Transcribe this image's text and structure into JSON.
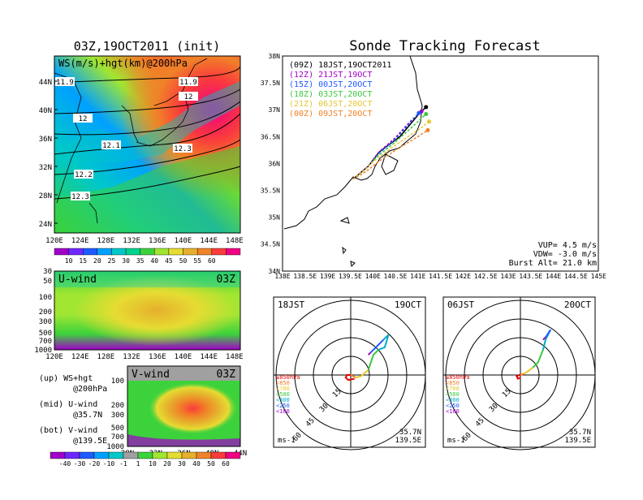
{
  "left_title": "03Z,19OCT2011 (init)",
  "right_title": "Sonde Tracking Forecast",
  "upper_map": {
    "label": "WS(m/s)+hgt(km)@200hPa",
    "lat_ticks": [
      "44N",
      "40N",
      "36N",
      "32N",
      "28N",
      "24N"
    ],
    "lon_ticks": [
      "120E",
      "124E",
      "128E",
      "132E",
      "136E",
      "140E",
      "144E",
      "148E"
    ],
    "contour_labels": [
      "11.9",
      "11.9",
      "12",
      "12",
      "12.1",
      "12.3",
      "12.2",
      "12.3"
    ]
  },
  "speed_colorbar": {
    "ticks": [
      "10",
      "15",
      "20",
      "25",
      "30",
      "35",
      "40",
      "45",
      "50",
      "55",
      "60"
    ],
    "colors": [
      "#a000c8",
      "#6e28ff",
      "#1e5aff",
      "#00a0ff",
      "#00c8c8",
      "#00d28c",
      "#3cd23c",
      "#a0e632",
      "#e6dc32",
      "#e6af2d",
      "#f08228",
      "#fa3c3c",
      "#f00082"
    ]
  },
  "u_panel": {
    "label": "U-wind",
    "time": "03Z",
    "levels": [
      "30",
      "50",
      "100",
      "200",
      "300",
      "500",
      "700",
      "1000"
    ],
    "lon_ticks": [
      "120E",
      "124E",
      "128E",
      "132E",
      "136E",
      "140E",
      "144E",
      "148E"
    ]
  },
  "v_panel": {
    "label": "V-wind",
    "time": "03Z",
    "levels": [
      "100",
      "200",
      "300",
      "500",
      "700",
      "1000"
    ],
    "lat_ticks": [
      "28N",
      "32N",
      "36N",
      "40N",
      "44N"
    ]
  },
  "side_notes": [
    {
      "line1": "(up) WS+hgt",
      "line2": "@200hPa"
    },
    {
      "line1": "(mid) U-wind",
      "line2": "@35.7N"
    },
    {
      "line1": "(bot) V-wind",
      "line2": "@139.5E"
    }
  ],
  "wind_colorbar": {
    "ticks": [
      "-40",
      "-30",
      "-20",
      "-10",
      "-1",
      "1",
      "10",
      "20",
      "30",
      "40",
      "50",
      "60"
    ],
    "colors": [
      "#a000c8",
      "#6e28ff",
      "#1e5aff",
      "#00a0ff",
      "#00c8c8",
      "#a0a0a0",
      "#3cd23c",
      "#a0e632",
      "#e6dc32",
      "#e6af2d",
      "#f08228",
      "#fa3c3c",
      "#f00082"
    ]
  },
  "track_map": {
    "lat_ticks": [
      "38N",
      "37.5N",
      "37N",
      "36.5N",
      "36N",
      "35.5N",
      "35N",
      "34.5N",
      "34N"
    ],
    "lon_ticks": [
      "138E",
      "138.5E",
      "139E",
      "139.5E",
      "140E",
      "140.5E",
      "141E",
      "141.5E",
      "142E",
      "142.5E",
      "143E",
      "143.5E",
      "144E",
      "144.5E",
      "145E"
    ],
    "launch_times": [
      {
        "text": "(09Z)  18JST,19OCT2011",
        "color": "#000000"
      },
      {
        "text": "(12Z)  21JST,19OCT",
        "color": "#a000c8"
      },
      {
        "text": "(15Z)  00JST,20OCT",
        "color": "#1e5aff"
      },
      {
        "text": "(18Z)  03JST,20OCT",
        "color": "#3cc83c"
      },
      {
        "text": "(21Z)  06JST,20OCT",
        "color": "#e6c832"
      },
      {
        "text": "(00Z)  09JST,20OCT",
        "color": "#f08228"
      }
    ],
    "params": [
      "VUP= 4.5 m/s",
      "VDW= -3.0 m/s",
      "Burst Alt= 21.0 km"
    ]
  },
  "chart_data": [
    {
      "type": "line",
      "panel": "trajectory",
      "xlabel": "",
      "ylabel": "",
      "xlim": [
        138,
        145
      ],
      "ylim": [
        34,
        38
      ],
      "series": [
        {
          "name": "(09Z) 18JST,19OCT2011",
          "color": "#000000",
          "x": [
            139.56,
            139.9,
            140.15,
            140.6,
            141.0,
            141.18
          ],
          "y": [
            35.71,
            35.95,
            36.22,
            36.5,
            36.9,
            37.05
          ]
        },
        {
          "name": "(12Z) 21JST,19OCT",
          "color": "#a000c8",
          "x": [
            139.56,
            139.9,
            140.12,
            140.5,
            140.85,
            141.08
          ],
          "y": [
            35.71,
            35.95,
            36.2,
            36.48,
            36.8,
            36.97
          ]
        },
        {
          "name": "(15Z) 00JST,20OCT",
          "color": "#1e5aff",
          "x": [
            139.56,
            139.9,
            140.12,
            140.5,
            140.85,
            141.02
          ],
          "y": [
            35.71,
            35.94,
            36.18,
            36.45,
            36.78,
            36.94
          ]
        },
        {
          "name": "(18Z) 03JST,20OCT",
          "color": "#3cc83c",
          "x": [
            139.56,
            139.85,
            140.08,
            140.5,
            140.9,
            141.18
          ],
          "y": [
            35.71,
            35.9,
            36.12,
            36.4,
            36.7,
            36.92
          ]
        },
        {
          "name": "(21Z) 06JST,20OCT",
          "color": "#e6c832",
          "x": [
            139.56,
            139.82,
            140.1,
            140.6,
            141.0,
            141.25
          ],
          "y": [
            35.71,
            35.88,
            36.1,
            36.4,
            36.62,
            36.78
          ]
        },
        {
          "name": "(00Z) 09JST,20OCT",
          "color": "#f08228",
          "x": [
            139.56,
            139.85,
            140.15,
            140.6,
            141.0,
            141.22
          ],
          "y": [
            35.71,
            35.85,
            36.05,
            36.3,
            36.5,
            36.62
          ]
        }
      ]
    },
    {
      "type": "line",
      "panel": "hodograph",
      "title": "18JST 19OCT",
      "corner_labels": [
        "18JST",
        "19OCT"
      ],
      "rings": [
        "15",
        "30",
        "45",
        "60"
      ],
      "legend": [
        "≥850hPa",
        "<850",
        "<700",
        "<500",
        "<300",
        "<250",
        "<100"
      ],
      "location": [
        "35.7N",
        "139.5E"
      ],
      "units": "ms-1",
      "segments": [
        {
          "level": "≥850hPa",
          "color": "#e60000",
          "u": [
            3,
            -2,
            -4,
            -3,
            0
          ],
          "v": [
            -3,
            -4,
            -2,
            0,
            0
          ]
        },
        {
          "level": "<850",
          "color": "#f08228",
          "u": [
            0,
            2,
            4
          ],
          "v": [
            0,
            -1,
            -2
          ]
        },
        {
          "level": "<700",
          "color": "#e6c832",
          "u": [
            4,
            8,
            14
          ],
          "v": [
            -2,
            -1,
            4
          ]
        },
        {
          "level": "<500",
          "color": "#3cc83c",
          "u": [
            14,
            18,
            22
          ],
          "v": [
            4,
            16,
            20
          ]
        },
        {
          "level": "<300",
          "color": "#00aac8",
          "u": [
            22,
            27,
            30,
            26
          ],
          "v": [
            20,
            22,
            32,
            28
          ]
        },
        {
          "level": "<250",
          "color": "#1e5aff",
          "u": [
            26,
            22,
            16
          ],
          "v": [
            28,
            24,
            18
          ]
        },
        {
          "level": "<100",
          "color": "#a000c8",
          "u": [
            16,
            14
          ],
          "v": [
            18,
            16
          ]
        }
      ]
    },
    {
      "type": "line",
      "panel": "hodograph",
      "title": "06JST 20OCT",
      "corner_labels": [
        "06JST",
        "20OCT"
      ],
      "rings": [
        "15",
        "30",
        "45",
        "60"
      ],
      "legend": [
        "≥850hPa",
        "<850",
        "<700",
        "<500",
        "<300",
        "<250",
        "<100"
      ],
      "location": [
        "35.7N",
        "139.5E"
      ],
      "units": "ms-1",
      "segments": [
        {
          "level": "≥850hPa",
          "color": "#e60000",
          "u": [
            0,
            -2,
            -3,
            -1,
            0
          ],
          "v": [
            -2,
            -3,
            -1,
            0,
            0
          ]
        },
        {
          "level": "<850",
          "color": "#f08228",
          "u": [
            0,
            3
          ],
          "v": [
            0,
            1
          ]
        },
        {
          "level": "<700",
          "color": "#e6c832",
          "u": [
            3,
            6,
            10
          ],
          "v": [
            1,
            3,
            6
          ]
        },
        {
          "level": "<500",
          "color": "#3cc83c",
          "u": [
            10,
            14,
            18
          ],
          "v": [
            6,
            10,
            20
          ]
        },
        {
          "level": "<300",
          "color": "#00aac8",
          "u": [
            18,
            20,
            24
          ],
          "v": [
            20,
            28,
            36
          ]
        },
        {
          "level": "<250",
          "color": "#1e5aff",
          "u": [
            24,
            20
          ],
          "v": [
            36,
            30
          ]
        },
        {
          "level": "<100",
          "color": "#a000c8",
          "u": [
            20,
            18
          ],
          "v": [
            30,
            28
          ]
        }
      ]
    }
  ]
}
